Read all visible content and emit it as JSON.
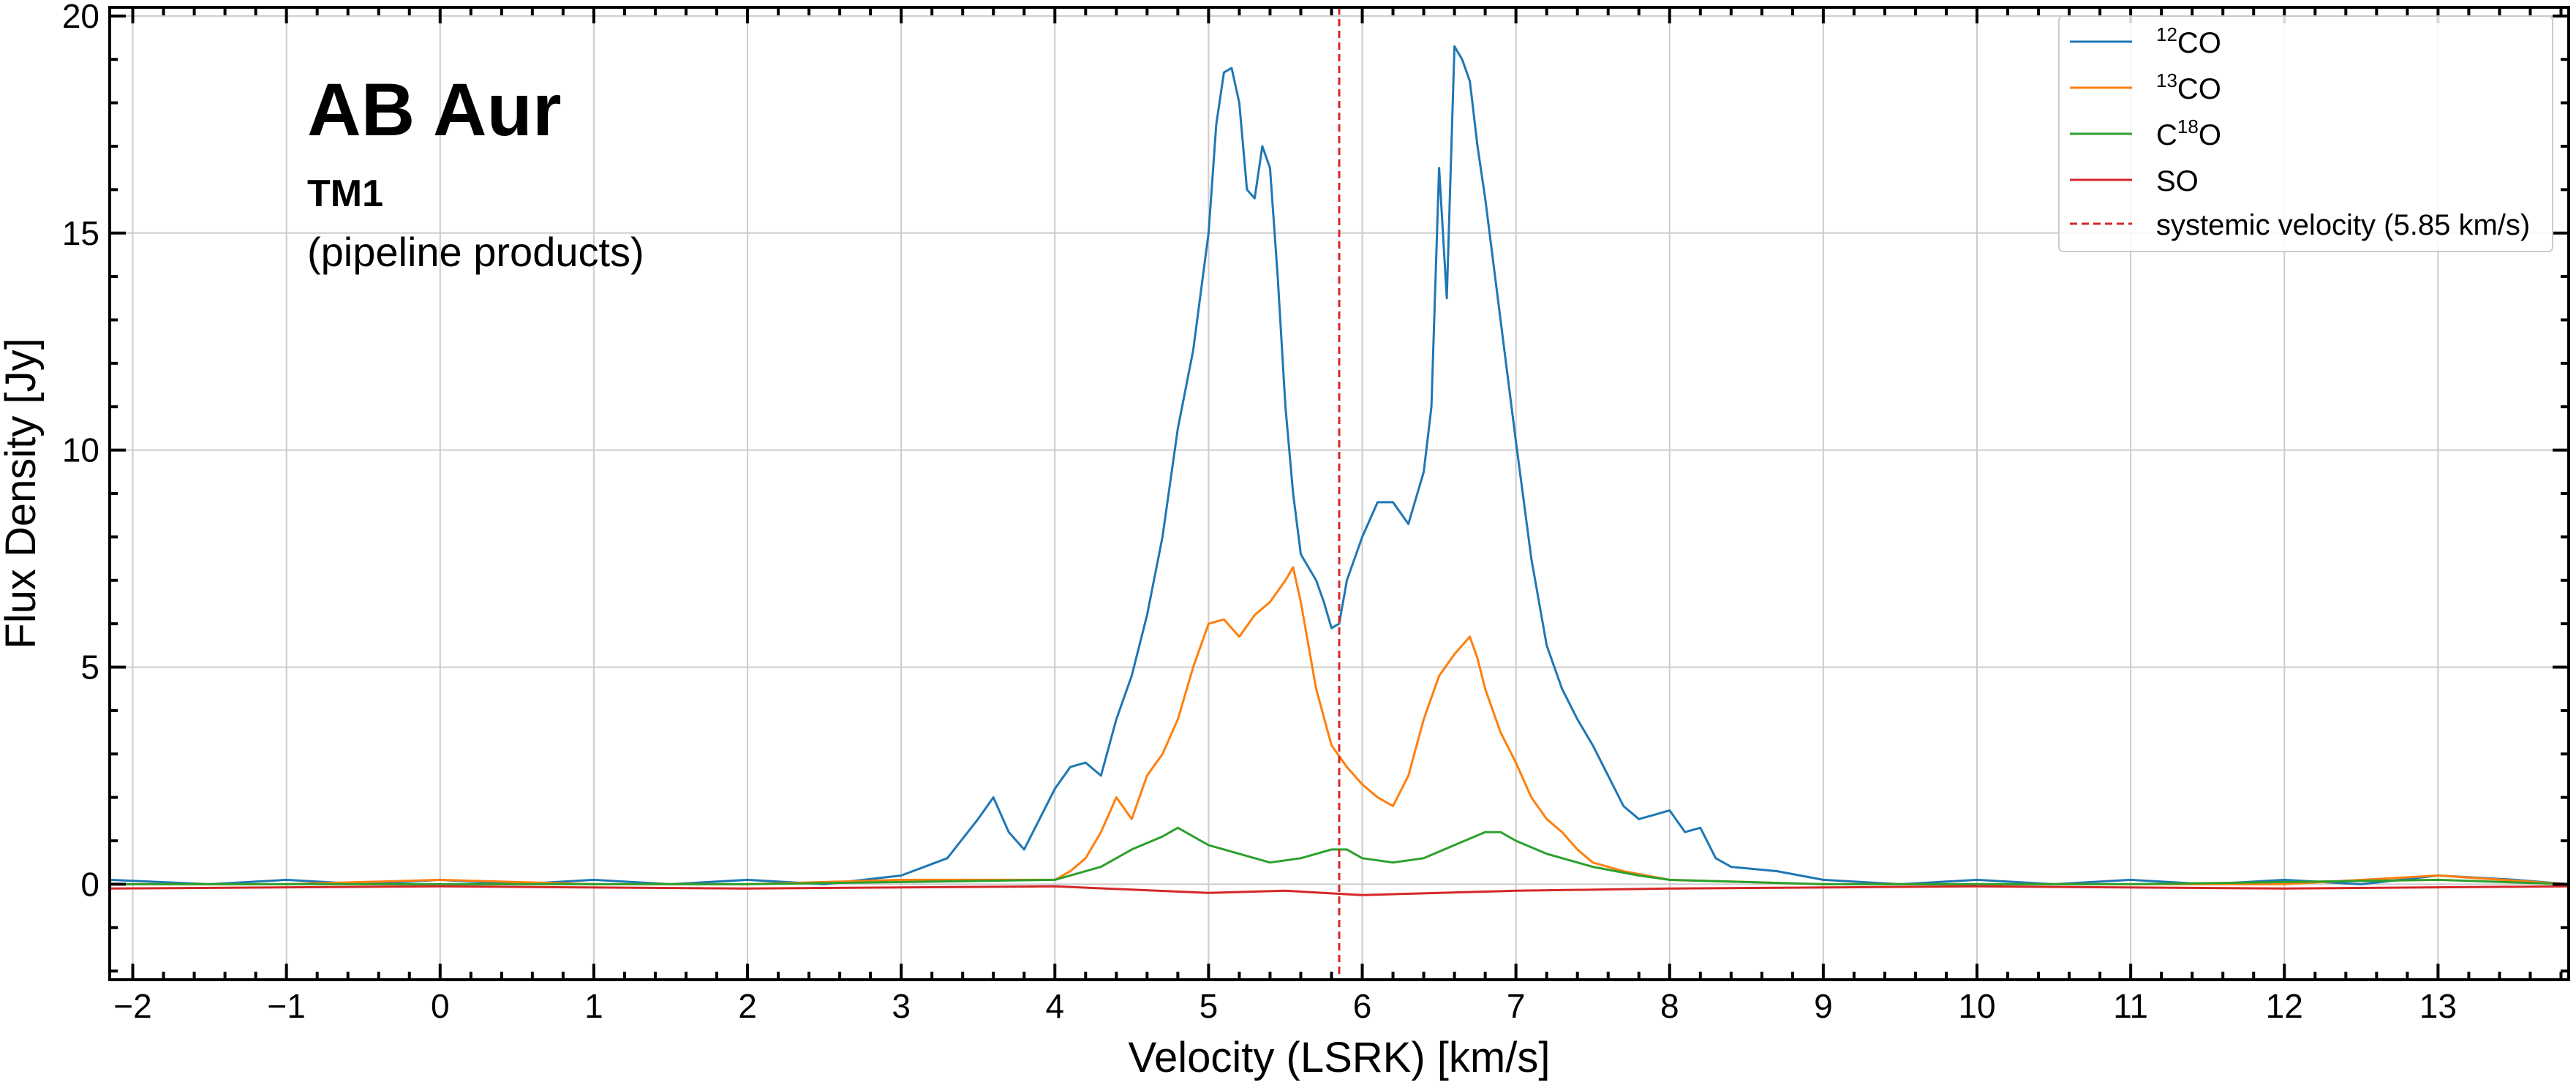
{
  "chart_data": {
    "type": "line",
    "annotation": {
      "object": "AB Aur",
      "config": "TM1",
      "note": "(pipeline products)"
    },
    "xlabel": "Velocity (LSRK) [km/s]",
    "ylabel": "Flux Density [Jy]",
    "xlim": [
      -2.15,
      13.85
    ],
    "ylim": [
      -2.2,
      20.2
    ],
    "xticks": [
      -2,
      -1,
      0,
      1,
      2,
      3,
      4,
      5,
      6,
      7,
      8,
      9,
      10,
      11,
      12,
      13
    ],
    "yticks": [
      0,
      5,
      10,
      15,
      20
    ],
    "grid": true,
    "legend_position": "top-right",
    "systemic_velocity": {
      "x": 5.85,
      "label": "systemic velocity (5.85 km/s)",
      "color": "#d62728",
      "style": "dashed"
    },
    "series": [
      {
        "name": "12CO",
        "label_sup": "12",
        "label_main": "CO",
        "label_pre": "",
        "label_post": "",
        "color": "#1f77b4",
        "points": [
          [
            -2.15,
            0.1
          ],
          [
            -1.5,
            0.0
          ],
          [
            -1.0,
            0.1
          ],
          [
            -0.5,
            0.0
          ],
          [
            0.0,
            0.1
          ],
          [
            0.5,
            0.0
          ],
          [
            1.0,
            0.1
          ],
          [
            1.5,
            0.0
          ],
          [
            2.0,
            0.1
          ],
          [
            2.5,
            0.0
          ],
          [
            3.0,
            0.2
          ],
          [
            3.3,
            0.6
          ],
          [
            3.5,
            1.5
          ],
          [
            3.6,
            2.0
          ],
          [
            3.7,
            1.2
          ],
          [
            3.8,
            0.8
          ],
          [
            3.9,
            1.5
          ],
          [
            4.0,
            2.2
          ],
          [
            4.1,
            2.7
          ],
          [
            4.2,
            2.8
          ],
          [
            4.3,
            2.5
          ],
          [
            4.4,
            3.8
          ],
          [
            4.5,
            4.8
          ],
          [
            4.6,
            6.2
          ],
          [
            4.7,
            8.0
          ],
          [
            4.8,
            10.5
          ],
          [
            4.9,
            12.3
          ],
          [
            5.0,
            15.0
          ],
          [
            5.05,
            17.5
          ],
          [
            5.1,
            18.7
          ],
          [
            5.15,
            18.8
          ],
          [
            5.2,
            18.0
          ],
          [
            5.25,
            16.0
          ],
          [
            5.3,
            15.8
          ],
          [
            5.35,
            17.0
          ],
          [
            5.4,
            16.5
          ],
          [
            5.45,
            14.0
          ],
          [
            5.5,
            11.0
          ],
          [
            5.55,
            9.0
          ],
          [
            5.6,
            7.6
          ],
          [
            5.7,
            7.0
          ],
          [
            5.75,
            6.5
          ],
          [
            5.8,
            5.9
          ],
          [
            5.85,
            6.0
          ],
          [
            5.9,
            7.0
          ],
          [
            6.0,
            8.0
          ],
          [
            6.1,
            8.8
          ],
          [
            6.2,
            8.8
          ],
          [
            6.3,
            8.3
          ],
          [
            6.4,
            9.5
          ],
          [
            6.45,
            11.0
          ],
          [
            6.5,
            16.5
          ],
          [
            6.55,
            13.5
          ],
          [
            6.6,
            19.3
          ],
          [
            6.65,
            19.0
          ],
          [
            6.7,
            18.5
          ],
          [
            6.75,
            17.0
          ],
          [
            6.8,
            15.8
          ],
          [
            6.9,
            13.0
          ],
          [
            7.0,
            10.2
          ],
          [
            7.1,
            7.5
          ],
          [
            7.2,
            5.5
          ],
          [
            7.3,
            4.5
          ],
          [
            7.4,
            3.8
          ],
          [
            7.5,
            3.2
          ],
          [
            7.6,
            2.5
          ],
          [
            7.7,
            1.8
          ],
          [
            7.8,
            1.5
          ],
          [
            7.9,
            1.6
          ],
          [
            8.0,
            1.7
          ],
          [
            8.1,
            1.2
          ],
          [
            8.2,
            1.3
          ],
          [
            8.3,
            0.6
          ],
          [
            8.4,
            0.4
          ],
          [
            8.7,
            0.3
          ],
          [
            9.0,
            0.1
          ],
          [
            9.5,
            0.0
          ],
          [
            10.0,
            0.1
          ],
          [
            10.5,
            0.0
          ],
          [
            11.0,
            0.1
          ],
          [
            11.5,
            0.0
          ],
          [
            12.0,
            0.1
          ],
          [
            12.5,
            0.0
          ],
          [
            13.0,
            0.2
          ],
          [
            13.5,
            0.1
          ],
          [
            13.85,
            0.0
          ]
        ]
      },
      {
        "name": "13CO",
        "label_sup": "13",
        "label_main": "CO",
        "label_pre": "",
        "label_post": "",
        "color": "#ff7f0e",
        "points": [
          [
            -2.15,
            0.0
          ],
          [
            -1.0,
            0.0
          ],
          [
            0.0,
            0.1
          ],
          [
            1.0,
            0.0
          ],
          [
            2.0,
            0.0
          ],
          [
            3.0,
            0.1
          ],
          [
            3.5,
            0.1
          ],
          [
            4.0,
            0.1
          ],
          [
            4.1,
            0.3
          ],
          [
            4.2,
            0.6
          ],
          [
            4.3,
            1.2
          ],
          [
            4.4,
            2.0
          ],
          [
            4.5,
            1.5
          ],
          [
            4.6,
            2.5
          ],
          [
            4.7,
            3.0
          ],
          [
            4.8,
            3.8
          ],
          [
            4.9,
            5.0
          ],
          [
            5.0,
            6.0
          ],
          [
            5.1,
            6.1
          ],
          [
            5.2,
            5.7
          ],
          [
            5.3,
            6.2
          ],
          [
            5.4,
            6.5
          ],
          [
            5.5,
            7.0
          ],
          [
            5.55,
            7.3
          ],
          [
            5.6,
            6.5
          ],
          [
            5.7,
            4.5
          ],
          [
            5.8,
            3.2
          ],
          [
            5.9,
            2.7
          ],
          [
            6.0,
            2.3
          ],
          [
            6.1,
            2.0
          ],
          [
            6.2,
            1.8
          ],
          [
            6.3,
            2.5
          ],
          [
            6.4,
            3.8
          ],
          [
            6.5,
            4.8
          ],
          [
            6.6,
            5.3
          ],
          [
            6.7,
            5.7
          ],
          [
            6.75,
            5.2
          ],
          [
            6.8,
            4.5
          ],
          [
            6.9,
            3.5
          ],
          [
            7.0,
            2.8
          ],
          [
            7.1,
            2.0
          ],
          [
            7.2,
            1.5
          ],
          [
            7.3,
            1.2
          ],
          [
            7.4,
            0.8
          ],
          [
            7.5,
            0.5
          ],
          [
            7.7,
            0.3
          ],
          [
            8.0,
            0.1
          ],
          [
            9.0,
            0.0
          ],
          [
            10.0,
            0.0
          ],
          [
            11.0,
            0.0
          ],
          [
            12.0,
            0.0
          ],
          [
            13.0,
            0.2
          ],
          [
            13.85,
            0.0
          ]
        ]
      },
      {
        "name": "C18O",
        "label_sup": "18",
        "label_main": "",
        "label_pre": "C",
        "label_post": "O",
        "color": "#2ca02c",
        "points": [
          [
            -2.15,
            0.0
          ],
          [
            0.0,
            0.0
          ],
          [
            2.0,
            0.0
          ],
          [
            4.0,
            0.1
          ],
          [
            4.3,
            0.4
          ],
          [
            4.5,
            0.8
          ],
          [
            4.7,
            1.1
          ],
          [
            4.8,
            1.3
          ],
          [
            4.9,
            1.1
          ],
          [
            5.0,
            0.9
          ],
          [
            5.2,
            0.7
          ],
          [
            5.4,
            0.5
          ],
          [
            5.6,
            0.6
          ],
          [
            5.8,
            0.8
          ],
          [
            5.9,
            0.8
          ],
          [
            6.0,
            0.6
          ],
          [
            6.2,
            0.5
          ],
          [
            6.4,
            0.6
          ],
          [
            6.6,
            0.9
          ],
          [
            6.8,
            1.2
          ],
          [
            6.9,
            1.2
          ],
          [
            7.0,
            1.0
          ],
          [
            7.2,
            0.7
          ],
          [
            7.5,
            0.4
          ],
          [
            7.8,
            0.2
          ],
          [
            8.0,
            0.1
          ],
          [
            9.0,
            0.0
          ],
          [
            11.0,
            0.0
          ],
          [
            13.0,
            0.1
          ],
          [
            13.85,
            0.0
          ]
        ]
      },
      {
        "name": "SO",
        "label_sup": "",
        "label_main": "SO",
        "label_pre": "",
        "label_post": "",
        "color": "#d62728",
        "points": [
          [
            -2.15,
            -0.1
          ],
          [
            0.0,
            -0.05
          ],
          [
            2.0,
            -0.1
          ],
          [
            4.0,
            -0.05
          ],
          [
            5.0,
            -0.2
          ],
          [
            5.5,
            -0.15
          ],
          [
            6.0,
            -0.25
          ],
          [
            6.5,
            -0.2
          ],
          [
            7.0,
            -0.15
          ],
          [
            8.0,
            -0.1
          ],
          [
            10.0,
            -0.05
          ],
          [
            12.0,
            -0.1
          ],
          [
            13.85,
            -0.05
          ]
        ]
      }
    ]
  }
}
